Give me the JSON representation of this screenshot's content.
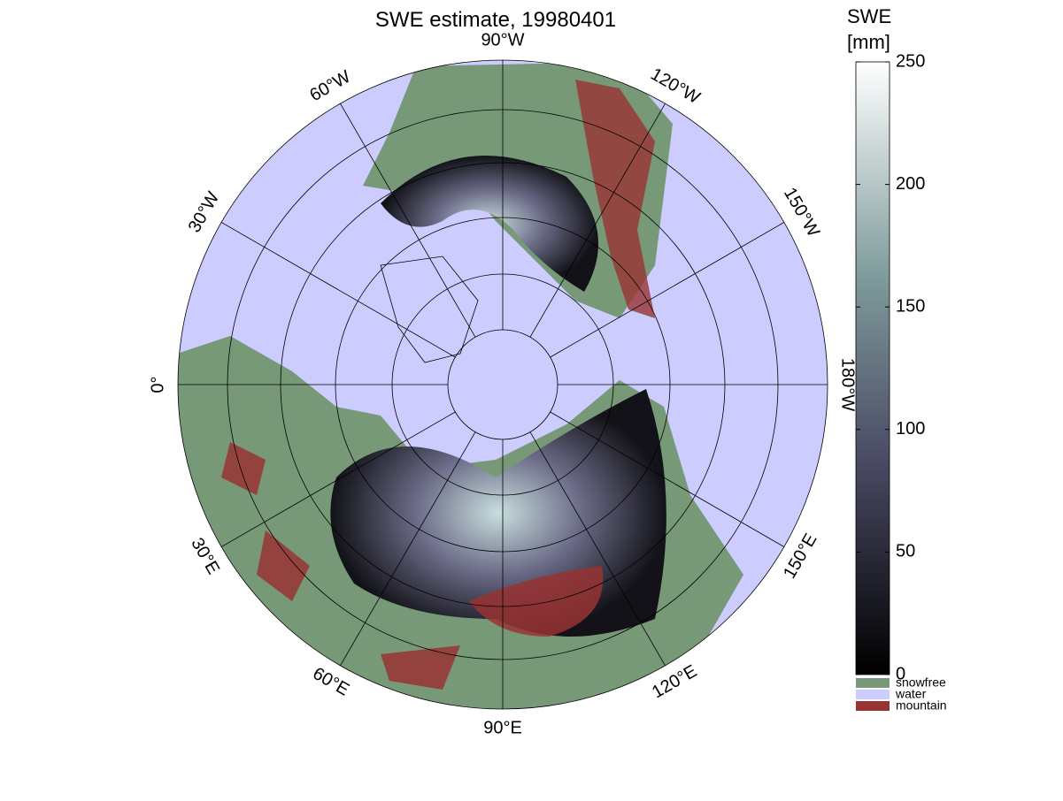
{
  "title": "SWE estimate, 19980401",
  "map": {
    "meridian_labels": [
      "0°",
      "30°E",
      "60°E",
      "90°E",
      "120°E",
      "150°E",
      "180°W",
      "150°W",
      "120°W",
      "90°W",
      "60°W",
      "30°W"
    ]
  },
  "colorbar": {
    "label": [
      "SWE",
      "[mm]"
    ],
    "lim": [
      0,
      250
    ],
    "ticks": [
      0,
      50,
      100,
      150,
      200,
      250
    ]
  },
  "legend": [
    {
      "label": "snowfree",
      "color": "#779977"
    },
    {
      "label": "water",
      "color": "#ccccff"
    },
    {
      "label": "mountain",
      "color": "#993333"
    }
  ]
}
